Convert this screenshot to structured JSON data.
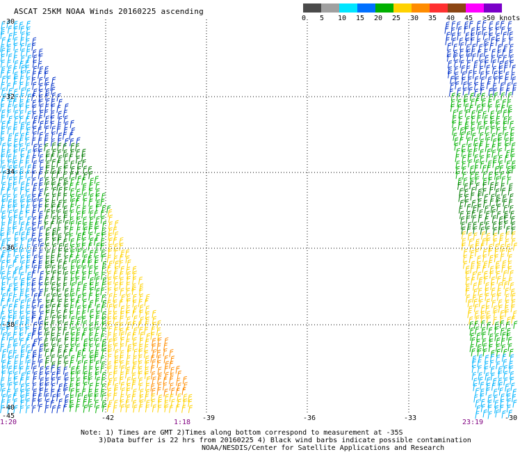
{
  "title": "ASCAT 25KM NOAA Winds 20160225 ascending",
  "legend": {
    "unit_label": ">50 knots",
    "tick_labels": [
      "0",
      "5",
      "10",
      "15",
      "20",
      "25",
      "30",
      "35",
      "40",
      "45"
    ],
    "colors": [
      "#4a4a4a",
      "#a0a0a0",
      "#00e5ff",
      "#0070ff",
      "#00b000",
      "#ffd200",
      "#ff8c00",
      "#ff3030",
      "#8b4513",
      "#ff00ff",
      "#7a00c8"
    ]
  },
  "axes": {
    "longitude_labels": [
      "-42",
      "-39",
      "-36",
      "-33",
      "-30"
    ],
    "latitude_labels": [
      "-30",
      "-32",
      "-34",
      "-36",
      "-38",
      "-40"
    ],
    "corner_label": "-45"
  },
  "time_labels": [
    "1:20",
    "1:18",
    "23:19"
  ],
  "notes": {
    "line1": "Note: 1) Times are GMT 2)Times along bottom correspond to measurement at -35S",
    "line2": "3)Data buffer is 22 hrs from 20160225 4) Black wind barbs indicate possible contamination",
    "line3": "NOAA/NESDIS/Center for Satellite Applications and Research"
  }
}
